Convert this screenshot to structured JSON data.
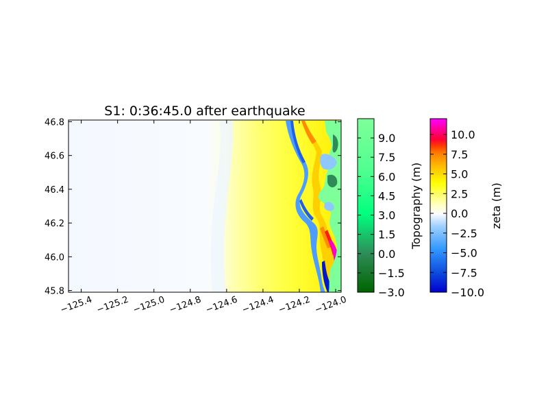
{
  "chart_data": {
    "type": "heatmap",
    "title": "S1: 0:36:45.0 after earthquake",
    "xlabel": "",
    "ylabel": "",
    "xlim": [
      -125.47,
      -123.97
    ],
    "ylim": [
      45.79,
      46.81
    ],
    "x_ticks": [
      "−125.4",
      "−125.2",
      "−125.0",
      "−124.8",
      "−124.6",
      "−124.4",
      "−124.2",
      "−124.0"
    ],
    "x_tick_values": [
      -125.4,
      -125.2,
      -125.0,
      -124.8,
      -124.6,
      -124.4,
      -124.2,
      -124.0
    ],
    "y_ticks": [
      "46.8",
      "46.6",
      "46.4",
      "46.2",
      "46.0",
      "45.8"
    ],
    "y_tick_values": [
      46.8,
      46.6,
      46.4,
      46.2,
      46.0,
      45.8
    ],
    "grid": false,
    "colorbars": [
      {
        "label": "Topography (m)",
        "range": [
          -3.0,
          10.5
        ],
        "ticks": [
          "9.0",
          "7.5",
          "6.0",
          "4.5",
          "3.0",
          "1.5",
          "0.0",
          "−1.5",
          "−3.0"
        ],
        "tick_values": [
          9.0,
          7.5,
          6.0,
          4.5,
          3.0,
          1.5,
          0.0,
          -1.5,
          -3.0
        ],
        "colors": [
          "#006400",
          "#2e8b57",
          "#00ff7f",
          "#7fff9a"
        ]
      },
      {
        "label": "zeta (m)",
        "range": [
          -10.0,
          12.0
        ],
        "ticks": [
          "10.0",
          "7.5",
          "5.0",
          "2.5",
          "0.0",
          "−2.5",
          "−5.0",
          "−7.5",
          "−10.0"
        ],
        "tick_values": [
          10.0,
          7.5,
          5.0,
          2.5,
          0.0,
          -2.5,
          -5.0,
          -7.5,
          -10.0
        ],
        "colors": [
          "#0000cd",
          "#3399ff",
          "#ffffff",
          "#ffff00",
          "#ff8000",
          "#ff0000",
          "#ff00ff"
        ]
      }
    ]
  }
}
